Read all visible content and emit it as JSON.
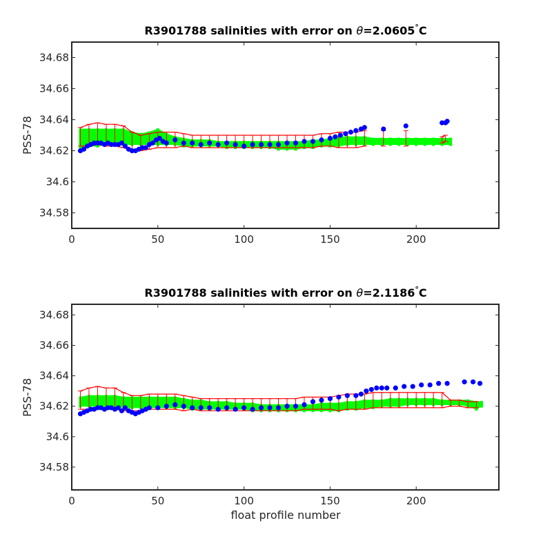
{
  "chart_data": [
    {
      "type": "scatter",
      "title_prefix": "R3901788 salinities with error on ",
      "title_theta": "θ",
      "title_value": "=2.0605",
      "title_degree": "°",
      "title_unit": "C",
      "xlabel": "",
      "ylabel": "PSS-78",
      "xlim": [
        0,
        248
      ],
      "ylim": [
        34.57,
        34.69
      ],
      "xticks": [
        0,
        50,
        100,
        150,
        200
      ],
      "yticks": [
        34.58,
        34.6,
        34.62,
        34.64,
        34.66,
        34.68
      ],
      "ytick_labels": [
        "34.58",
        "34.6",
        "34.62",
        "34.64",
        "34.66",
        "34.68"
      ],
      "xtick_labels": [
        "0",
        "50",
        "100",
        "150",
        "200"
      ],
      "grid": false,
      "series": [
        {
          "role": "reference-band",
          "color": "#00ff00",
          "x": [
            5,
            10,
            15,
            20,
            25,
            30,
            35,
            40,
            45,
            50,
            55,
            60,
            65,
            70,
            75,
            80,
            85,
            90,
            95,
            100,
            105,
            110,
            115,
            120,
            125,
            130,
            135,
            140,
            145,
            150,
            155,
            160,
            165,
            170,
            175,
            180,
            185,
            190,
            195,
            200,
            205,
            210,
            215,
            220
          ],
          "low": [
            34.622,
            34.623,
            34.623,
            34.624,
            34.624,
            34.624,
            34.624,
            34.624,
            34.624,
            34.624,
            34.624,
            34.624,
            34.623,
            34.623,
            34.623,
            34.623,
            34.623,
            34.622,
            34.622,
            34.622,
            34.622,
            34.622,
            34.622,
            34.621,
            34.621,
            34.621,
            34.622,
            34.622,
            34.623,
            34.623,
            34.623,
            34.624,
            34.624,
            34.624,
            34.624,
            34.624,
            34.624,
            34.624,
            34.624,
            34.624,
            34.624,
            34.624,
            34.624,
            34.624
          ],
          "high": [
            34.634,
            34.634,
            34.634,
            34.634,
            34.634,
            34.634,
            34.632,
            34.631,
            34.632,
            34.634,
            34.631,
            34.629,
            34.628,
            34.627,
            34.627,
            34.627,
            34.626,
            34.626,
            34.626,
            34.626,
            34.626,
            34.626,
            34.626,
            34.626,
            34.626,
            34.626,
            34.626,
            34.627,
            34.627,
            34.628,
            34.629,
            34.629,
            34.629,
            34.629,
            34.628,
            34.628,
            34.628,
            34.628,
            34.628,
            34.628,
            34.628,
            34.628,
            34.628,
            34.628
          ]
        },
        {
          "role": "error-bars",
          "color": "#ff0000",
          "x": [
            5,
            10,
            15,
            20,
            25,
            30,
            35,
            40,
            45,
            50,
            55,
            60,
            65,
            70,
            75,
            80,
            85,
            90,
            95,
            100,
            105,
            110,
            115,
            120,
            125,
            130,
            135,
            140,
            145,
            150,
            155,
            160,
            165,
            170,
            181,
            194,
            215,
            217
          ],
          "mid": [
            34.629,
            34.63,
            34.631,
            34.63,
            34.63,
            34.629,
            34.626,
            34.625,
            34.626,
            34.627,
            34.627,
            34.627,
            34.627,
            34.626,
            34.626,
            34.626,
            34.626,
            34.626,
            34.626,
            34.626,
            34.626,
            34.626,
            34.626,
            34.626,
            34.626,
            34.626,
            34.626,
            34.626,
            34.627,
            34.627,
            34.627,
            34.627,
            34.627,
            34.628,
            34.628,
            34.628,
            34.627,
            34.628
          ],
          "err": [
            0.006,
            0.007,
            0.007,
            0.007,
            0.007,
            0.007,
            0.006,
            0.005,
            0.005,
            0.005,
            0.005,
            0.005,
            0.004,
            0.004,
            0.004,
            0.004,
            0.004,
            0.004,
            0.004,
            0.004,
            0.004,
            0.004,
            0.004,
            0.004,
            0.004,
            0.004,
            0.004,
            0.004,
            0.004,
            0.004,
            0.005,
            0.005,
            0.005,
            0.005,
            0.005,
            0.005,
            0.002,
            0.002
          ]
        },
        {
          "role": "float-salinity",
          "color": "#0000ff",
          "x": [
            5,
            7,
            9,
            11,
            13,
            15,
            17,
            19,
            21,
            23,
            25,
            27,
            29,
            31,
            33,
            35,
            37,
            39,
            41,
            43,
            45,
            47,
            49,
            51,
            53,
            55,
            60,
            65,
            70,
            75,
            80,
            85,
            90,
            95,
            100,
            105,
            110,
            115,
            120,
            125,
            130,
            135,
            140,
            145,
            150,
            153,
            156,
            159,
            162,
            165,
            168,
            170,
            181,
            194,
            215,
            217,
            218
          ],
          "y": [
            34.62,
            34.621,
            34.623,
            34.624,
            34.625,
            34.625,
            34.625,
            34.624,
            34.625,
            34.624,
            34.624,
            34.624,
            34.625,
            34.623,
            34.621,
            34.62,
            34.62,
            34.621,
            34.622,
            34.622,
            34.624,
            34.625,
            34.627,
            34.628,
            34.626,
            34.625,
            34.627,
            34.625,
            34.625,
            34.624,
            34.625,
            34.624,
            34.625,
            34.624,
            34.623,
            34.624,
            34.624,
            34.624,
            34.624,
            34.625,
            34.625,
            34.626,
            34.626,
            34.627,
            34.628,
            34.629,
            34.63,
            34.631,
            34.632,
            34.633,
            34.634,
            34.635,
            34.634,
            34.636,
            34.638,
            34.638,
            34.639
          ]
        }
      ]
    },
    {
      "type": "scatter",
      "title_prefix": "R3901788 salinities with error on ",
      "title_theta": "θ",
      "title_value": "=2.1186",
      "title_degree": "°",
      "title_unit": "C",
      "xlabel": "float profile number",
      "ylabel": "PSS-78",
      "xlim": [
        0,
        248
      ],
      "ylim": [
        34.565,
        34.687
      ],
      "xticks": [
        0,
        50,
        100,
        150,
        200
      ],
      "yticks": [
        34.58,
        34.6,
        34.62,
        34.64,
        34.66,
        34.68
      ],
      "ytick_labels": [
        "34.58",
        "34.6",
        "34.62",
        "34.64",
        "34.66",
        "34.68"
      ],
      "xtick_labels": [
        "0",
        "50",
        "100",
        "150",
        "200"
      ],
      "grid": false,
      "series": [
        {
          "role": "reference-band",
          "color": "#00ff00",
          "x": [
            5,
            10,
            15,
            20,
            25,
            30,
            35,
            40,
            45,
            50,
            55,
            60,
            65,
            70,
            75,
            80,
            85,
            90,
            95,
            100,
            105,
            110,
            115,
            120,
            125,
            130,
            135,
            140,
            145,
            150,
            155,
            160,
            165,
            170,
            175,
            180,
            185,
            190,
            195,
            200,
            205,
            210,
            215,
            220,
            225,
            230,
            235,
            238
          ],
          "low": [
            34.62,
            34.62,
            34.62,
            34.62,
            34.62,
            34.619,
            34.619,
            34.619,
            34.619,
            34.619,
            34.619,
            34.619,
            34.619,
            34.618,
            34.618,
            34.618,
            34.618,
            34.618,
            34.618,
            34.618,
            34.617,
            34.617,
            34.617,
            34.617,
            34.617,
            34.617,
            34.617,
            34.617,
            34.617,
            34.617,
            34.617,
            34.618,
            34.618,
            34.619,
            34.619,
            34.62,
            34.62,
            34.62,
            34.621,
            34.621,
            34.621,
            34.621,
            34.621,
            34.621,
            34.621,
            34.62,
            34.618,
            34.62
          ],
          "high": [
            34.626,
            34.627,
            34.627,
            34.627,
            34.627,
            34.626,
            34.626,
            34.626,
            34.626,
            34.626,
            34.626,
            34.626,
            34.625,
            34.624,
            34.624,
            34.623,
            34.623,
            34.623,
            34.622,
            34.622,
            34.622,
            34.621,
            34.621,
            34.621,
            34.621,
            34.621,
            34.621,
            34.621,
            34.622,
            34.622,
            34.622,
            34.623,
            34.623,
            34.624,
            34.624,
            34.624,
            34.625,
            34.625,
            34.625,
            34.625,
            34.625,
            34.625,
            34.624,
            34.624,
            34.624,
            34.624,
            34.623,
            34.623
          ]
        },
        {
          "role": "error-bars",
          "color": "#ff0000",
          "x": [
            5,
            10,
            15,
            20,
            25,
            30,
            35,
            40,
            45,
            50,
            55,
            60,
            65,
            70,
            75,
            80,
            85,
            90,
            95,
            100,
            105,
            110,
            115,
            120,
            125,
            130,
            135,
            140,
            145,
            150,
            155,
            160,
            165,
            170,
            175,
            180,
            185,
            190,
            195,
            200,
            205,
            210,
            215,
            220,
            225,
            230,
            235
          ],
          "mid": [
            34.624,
            34.625,
            34.626,
            34.625,
            34.625,
            34.623,
            34.622,
            34.622,
            34.623,
            34.623,
            34.623,
            34.623,
            34.622,
            34.622,
            34.621,
            34.621,
            34.621,
            34.621,
            34.621,
            34.621,
            34.621,
            34.621,
            34.621,
            34.621,
            34.621,
            34.621,
            34.622,
            34.622,
            34.622,
            34.622,
            34.622,
            34.623,
            34.623,
            34.623,
            34.624,
            34.624,
            34.624,
            34.624,
            34.624,
            34.624,
            34.624,
            34.624,
            34.624,
            34.622,
            34.622,
            34.621,
            34.621
          ],
          "err": [
            0.006,
            0.007,
            0.007,
            0.007,
            0.007,
            0.006,
            0.005,
            0.005,
            0.005,
            0.005,
            0.005,
            0.005,
            0.005,
            0.004,
            0.004,
            0.004,
            0.004,
            0.004,
            0.004,
            0.004,
            0.004,
            0.004,
            0.004,
            0.004,
            0.004,
            0.004,
            0.004,
            0.004,
            0.004,
            0.004,
            0.005,
            0.005,
            0.005,
            0.005,
            0.005,
            0.005,
            0.005,
            0.005,
            0.005,
            0.005,
            0.005,
            0.005,
            0.005,
            0.002,
            0.002,
            0.002,
            0.002
          ]
        },
        {
          "role": "float-salinity",
          "color": "#0000ff",
          "x": [
            5,
            7,
            9,
            11,
            13,
            15,
            17,
            19,
            21,
            23,
            25,
            27,
            29,
            31,
            33,
            35,
            37,
            39,
            41,
            43,
            45,
            50,
            55,
            60,
            65,
            70,
            75,
            80,
            85,
            90,
            95,
            100,
            105,
            110,
            115,
            120,
            125,
            130,
            135,
            140,
            145,
            150,
            155,
            160,
            165,
            168,
            171,
            174,
            177,
            180,
            183,
            188,
            193,
            198,
            203,
            208,
            213,
            218,
            228,
            233,
            237
          ],
          "y": [
            34.615,
            34.616,
            34.617,
            34.618,
            34.618,
            34.619,
            34.619,
            34.618,
            34.619,
            34.619,
            34.618,
            34.619,
            34.617,
            34.619,
            34.617,
            34.616,
            34.615,
            34.616,
            34.617,
            34.618,
            34.619,
            34.619,
            34.62,
            34.621,
            34.62,
            34.619,
            34.619,
            34.619,
            34.618,
            34.619,
            34.618,
            34.619,
            34.618,
            34.619,
            34.619,
            34.619,
            34.62,
            34.62,
            34.621,
            34.623,
            34.624,
            34.625,
            34.626,
            34.627,
            34.627,
            34.628,
            34.63,
            34.631,
            34.632,
            34.632,
            34.632,
            34.632,
            34.633,
            34.633,
            34.634,
            34.634,
            34.635,
            34.635,
            34.636,
            34.636,
            34.635
          ]
        }
      ]
    }
  ]
}
